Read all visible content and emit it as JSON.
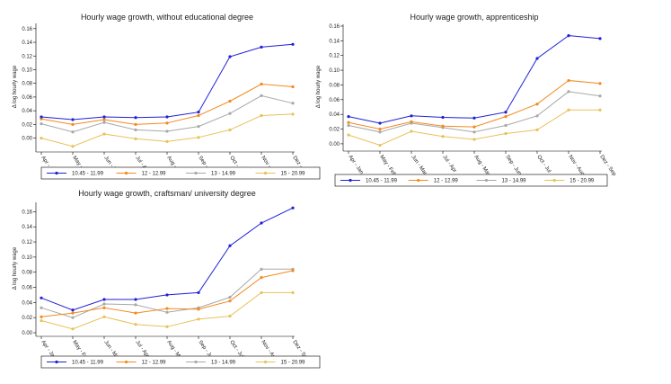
{
  "colors": {
    "s1": "#1f1fd6",
    "s2": "#f28a1e",
    "s3": "#a8a8a8",
    "s4": "#e8c15a",
    "axis": "#000000",
    "grid": "#d8d8d8"
  },
  "chart_data": [
    {
      "type": "line",
      "title": "Hourly wage growth, without educational degree",
      "ylabel": "Δ log hourly wage",
      "xlabel": "",
      "ylim": [
        -0.015,
        0.165
      ],
      "yticks": [
        "0.00",
        "0.02",
        "0.04",
        "0.06",
        "0.08",
        "0.10",
        "0.12",
        "0.14",
        "0.16"
      ],
      "categories": [
        "Apr - Jan",
        "May - Feb",
        "Jun - Mar",
        "Jul - Apr",
        "Aug - May",
        "Sep - Jun",
        "Oct - Jul",
        "Nov - Aug",
        "Dez - Sep"
      ],
      "series": [
        {
          "name": "10.45 - 11.99",
          "values": [
            0.031,
            0.027,
            0.031,
            0.03,
            0.031,
            0.038,
            0.119,
            0.133,
            0.137
          ]
        },
        {
          "name": "12 - 12.99",
          "values": [
            0.028,
            0.02,
            0.027,
            0.02,
            0.022,
            0.033,
            0.054,
            0.079,
            0.075
          ]
        },
        {
          "name": "13 - 14.99",
          "values": [
            0.021,
            0.009,
            0.023,
            0.012,
            0.01,
            0.017,
            0.036,
            0.062,
            0.051
          ]
        },
        {
          "name": "15 - 20.99",
          "values": [
            0.0,
            -0.012,
            0.006,
            -0.001,
            -0.005,
            0.001,
            0.012,
            0.033,
            0.035
          ]
        }
      ],
      "legend": [
        "10.45 - 11.99",
        "12 - 12.99",
        "13 - 14.99",
        "15 - 20.99"
      ]
    },
    {
      "type": "line",
      "title": "Hourly wage growth, apprenticeship",
      "ylabel": "Δ log hourly wage",
      "xlabel": "",
      "ylim": [
        -0.005,
        0.16
      ],
      "yticks": [
        "0.00",
        "0.02",
        "0.04",
        "0.06",
        "0.08",
        "0.10",
        "0.12",
        "0.14",
        "0.16"
      ],
      "categories": [
        "Apr - Jan",
        "May - Feb",
        "Jun - Mar",
        "Jul - Apr",
        "Aug - May",
        "Sep - Jun",
        "Oct - Jul",
        "Nov - Aug",
        "Dez - Sep"
      ],
      "series": [
        {
          "name": "10.45 - 11.99",
          "values": [
            0.037,
            0.028,
            0.038,
            0.036,
            0.035,
            0.043,
            0.116,
            0.147,
            0.143
          ]
        },
        {
          "name": "12 - 12.99",
          "values": [
            0.029,
            0.02,
            0.03,
            0.024,
            0.023,
            0.037,
            0.054,
            0.086,
            0.082
          ]
        },
        {
          "name": "13 - 14.99",
          "values": [
            0.025,
            0.016,
            0.028,
            0.022,
            0.016,
            0.025,
            0.038,
            0.071,
            0.065
          ]
        },
        {
          "name": "15 - 20.99",
          "values": [
            0.012,
            -0.002,
            0.017,
            0.01,
            0.006,
            0.014,
            0.019,
            0.046,
            0.046
          ]
        }
      ],
      "legend": [
        "10.45 - 11.99",
        "12 - 12.99",
        "13 - 14.99",
        "15 - 20.99"
      ]
    },
    {
      "type": "line",
      "title": "Hourly wage growth, craftsman/ university degree",
      "ylabel": "Δ log hourly wage",
      "xlabel": "",
      "ylim": [
        0,
        0.17
      ],
      "yticks": [
        "0.00",
        "0.02",
        "0.04",
        "0.06",
        "0.08",
        "0.10",
        "0.12",
        "0.14",
        "0.16"
      ],
      "categories": [
        "Apr - Jan",
        "May - Feb",
        "Jun - Mar",
        "Jul - Apr",
        "Aug - May",
        "Sep - Jun",
        "Oct - Jul",
        "Nov - Aug",
        "Dez - Sep"
      ],
      "series": [
        {
          "name": "10.45 - 11.99",
          "values": [
            0.046,
            0.03,
            0.044,
            0.044,
            0.05,
            0.053,
            0.115,
            0.145,
            0.165
          ]
        },
        {
          "name": "12 - 12.99",
          "values": [
            0.021,
            0.026,
            0.033,
            0.026,
            0.032,
            0.031,
            0.042,
            0.073,
            0.082
          ]
        },
        {
          "name": "13 - 14.99",
          "values": [
            0.033,
            0.02,
            0.038,
            0.037,
            0.027,
            0.033,
            0.047,
            0.084,
            0.084
          ]
        },
        {
          "name": "15 - 20.99",
          "values": [
            0.016,
            0.005,
            0.021,
            0.011,
            0.008,
            0.018,
            0.022,
            0.053,
            0.053
          ]
        }
      ],
      "legend": [
        "10.45 - 11.99",
        "12 - 12.99",
        "13 - 14.99",
        "15 - 20.99"
      ]
    }
  ]
}
